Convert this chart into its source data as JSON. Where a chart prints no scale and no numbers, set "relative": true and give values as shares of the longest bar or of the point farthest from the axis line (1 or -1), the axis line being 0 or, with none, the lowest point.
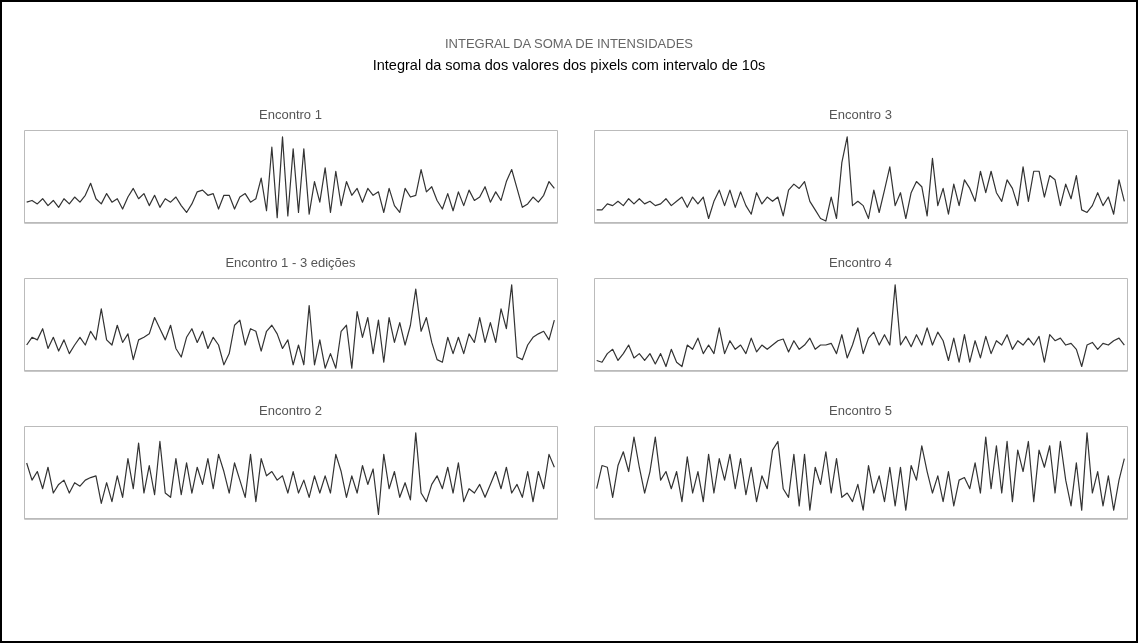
{
  "chart_data": [
    {
      "type": "other",
      "title": "INTEGRAL DA SOMA DE INTENSIDADES",
      "subtitle": "Integral da soma dos valores dos pixels com intervalo de 10s"
    },
    {
      "type": "line",
      "title": "Encontro 1",
      "relative": true,
      "color": "#333333",
      "categories": [
        null,
        null,
        null,
        null,
        null,
        null,
        null,
        null,
        null,
        null,
        null,
        null,
        null,
        null,
        null,
        null,
        null,
        null,
        null,
        null,
        null,
        null,
        null,
        null,
        null,
        null,
        null,
        null,
        null,
        null,
        null,
        null,
        null,
        null,
        null,
        null,
        null,
        null,
        null,
        null,
        null,
        null,
        null,
        null,
        null,
        null,
        null,
        null,
        null,
        null,
        null,
        null,
        null,
        null,
        null,
        null,
        null,
        null,
        null,
        null,
        null,
        null,
        null,
        null,
        null,
        null,
        null,
        null,
        null,
        null,
        null,
        null,
        null,
        null,
        null,
        null,
        null,
        null,
        null,
        null,
        null,
        null,
        null,
        null,
        null,
        null,
        null,
        null,
        null,
        null,
        null,
        null,
        null,
        null,
        null,
        null,
        null,
        null,
        null,
        null
      ],
      "values": [
        0.24,
        0.26,
        0.22,
        0.28,
        0.2,
        0.26,
        0.18,
        0.28,
        0.22,
        0.3,
        0.24,
        0.32,
        0.46,
        0.28,
        0.22,
        0.34,
        0.24,
        0.28,
        0.16,
        0.3,
        0.4,
        0.28,
        0.34,
        0.2,
        0.32,
        0.18,
        0.28,
        0.24,
        0.3,
        0.2,
        0.12,
        0.22,
        0.36,
        0.38,
        0.32,
        0.34,
        0.16,
        0.32,
        0.32,
        0.16,
        0.3,
        0.34,
        0.24,
        0.28,
        0.52,
        0.14,
        0.88,
        0.06,
        1,
        0.08,
        0.86,
        0.12,
        0.86,
        0.1,
        0.48,
        0.24,
        0.64,
        0.12,
        0.6,
        0.2,
        0.48,
        0.32,
        0.4,
        0.24,
        0.4,
        0.32,
        0.36,
        0.12,
        0.4,
        0.2,
        0.12,
        0.4,
        0.3,
        0.32,
        0.62,
        0.36,
        0.42,
        0.26,
        0.16,
        0.34,
        0.14,
        0.36,
        0.2,
        0.38,
        0.26,
        0.3,
        0.42,
        0.24,
        0.36,
        0.26,
        0.48,
        0.62,
        0.4,
        0.18,
        0.22,
        0.3,
        0.24,
        0.32,
        0.48,
        0.4
      ]
    },
    {
      "type": "line",
      "title": "Encontro 3",
      "relative": true,
      "color": "#333333",
      "categories": [
        null,
        null,
        null,
        null,
        null,
        null,
        null,
        null,
        null,
        null,
        null,
        null,
        null,
        null,
        null,
        null,
        null,
        null,
        null,
        null,
        null,
        null,
        null,
        null,
        null,
        null,
        null,
        null,
        null,
        null,
        null,
        null,
        null,
        null,
        null,
        null,
        null,
        null,
        null,
        null,
        null,
        null,
        null,
        null,
        null,
        null,
        null,
        null,
        null,
        null,
        null,
        null,
        null,
        null,
        null,
        null,
        null,
        null,
        null,
        null,
        null,
        null,
        null,
        null,
        null,
        null,
        null,
        null,
        null,
        null,
        null,
        null,
        null,
        null,
        null,
        null,
        null,
        null,
        null,
        null,
        null,
        null,
        null,
        null,
        null,
        null,
        null,
        null,
        null,
        null,
        null,
        null,
        null,
        null,
        null,
        null,
        null,
        null,
        null,
        null
      ],
      "values": [
        0.15,
        0.15,
        0.22,
        0.2,
        0.25,
        0.2,
        0.28,
        0.22,
        0.28,
        0.22,
        0.25,
        0.2,
        0.22,
        0.28,
        0.2,
        0.25,
        0.3,
        0.18,
        0.3,
        0.22,
        0.3,
        0.05,
        0.25,
        0.38,
        0.2,
        0.38,
        0.18,
        0.36,
        0.2,
        0.1,
        0.35,
        0.22,
        0.3,
        0.25,
        0.3,
        0.08,
        0.38,
        0.45,
        0.4,
        0.48,
        0.25,
        0.15,
        0.05,
        0.02,
        0.3,
        0.05,
        0.7,
        1,
        0.2,
        0.25,
        0.2,
        0.05,
        0.38,
        0.12,
        0.38,
        0.65,
        0.2,
        0.35,
        0.05,
        0.35,
        0.48,
        0.42,
        0.08,
        0.75,
        0.2,
        0.4,
        0.1,
        0.45,
        0.2,
        0.5,
        0.4,
        0.25,
        0.6,
        0.35,
        0.6,
        0.35,
        0.25,
        0.5,
        0.4,
        0.2,
        0.65,
        0.25,
        0.6,
        0.6,
        0.3,
        0.55,
        0.5,
        0.2,
        0.45,
        0.28,
        0.55,
        0.15,
        0.12,
        0.2,
        0.35,
        0.2,
        0.3,
        0.1,
        0.5,
        0.25
      ]
    },
    {
      "type": "line",
      "title": "Encontro 1 - 3 edições",
      "relative": true,
      "color": "#333333",
      "categories": [
        null,
        null,
        null,
        null,
        null,
        null,
        null,
        null,
        null,
        null,
        null,
        null,
        null,
        null,
        null,
        null,
        null,
        null,
        null,
        null,
        null,
        null,
        null,
        null,
        null,
        null,
        null,
        null,
        null,
        null,
        null,
        null,
        null,
        null,
        null,
        null,
        null,
        null,
        null,
        null,
        null,
        null,
        null,
        null,
        null,
        null,
        null,
        null,
        null,
        null,
        null,
        null,
        null,
        null,
        null,
        null,
        null,
        null,
        null,
        null,
        null,
        null,
        null,
        null,
        null,
        null,
        null,
        null,
        null,
        null,
        null,
        null,
        null,
        null,
        null,
        null,
        null,
        null,
        null,
        null,
        null,
        null,
        null,
        null,
        null,
        null,
        null,
        null,
        null,
        null,
        null,
        null,
        null,
        null,
        null,
        null,
        null,
        null,
        null,
        null
      ],
      "values": [
        0.3,
        0.39,
        0.36,
        0.49,
        0.26,
        0.39,
        0.23,
        0.36,
        0.2,
        0.3,
        0.39,
        0.3,
        0.46,
        0.36,
        0.72,
        0.36,
        0.3,
        0.53,
        0.33,
        0.43,
        0.13,
        0.36,
        0.39,
        0.43,
        0.62,
        0.49,
        0.36,
        0.53,
        0.26,
        0.16,
        0.39,
        0.49,
        0.33,
        0.46,
        0.26,
        0.39,
        0.3,
        0.07,
        0.2,
        0.53,
        0.59,
        0.3,
        0.49,
        0.46,
        0.23,
        0.46,
        0.53,
        0.43,
        0.26,
        0.36,
        0.07,
        0.3,
        0.07,
        0.76,
        0.07,
        0.36,
        0.03,
        0.2,
        0.03,
        0.46,
        0.53,
        0.03,
        0.69,
        0.39,
        0.62,
        0.2,
        0.59,
        0.1,
        0.62,
        0.33,
        0.56,
        0.3,
        0.53,
        0.95,
        0.46,
        0.62,
        0.33,
        0.13,
        0.1,
        0.39,
        0.2,
        0.39,
        0.2,
        0.43,
        0.33,
        0.62,
        0.33,
        0.56,
        0.33,
        0.72,
        0.49,
        1,
        0.16,
        0.13,
        0.3,
        0.39,
        0.43,
        0.46,
        0.36,
        0.59
      ]
    },
    {
      "type": "line",
      "title": "Encontro 4",
      "relative": true,
      "color": "#333333",
      "categories": [
        null,
        null,
        null,
        null,
        null,
        null,
        null,
        null,
        null,
        null,
        null,
        null,
        null,
        null,
        null,
        null,
        null,
        null,
        null,
        null,
        null,
        null,
        null,
        null,
        null,
        null,
        null,
        null,
        null,
        null,
        null,
        null,
        null,
        null,
        null,
        null,
        null,
        null,
        null,
        null,
        null,
        null,
        null,
        null,
        null,
        null,
        null,
        null,
        null,
        null,
        null,
        null,
        null,
        null,
        null,
        null,
        null,
        null,
        null,
        null,
        null,
        null,
        null,
        null,
        null,
        null,
        null,
        null,
        null,
        null,
        null,
        null,
        null,
        null,
        null,
        null,
        null,
        null,
        null,
        null,
        null,
        null,
        null,
        null,
        null,
        null,
        null,
        null,
        null,
        null,
        null,
        null,
        null,
        null,
        null,
        null,
        null,
        null,
        null,
        null
      ],
      "values": [
        0.12,
        0.1,
        0.2,
        0.25,
        0.12,
        0.2,
        0.3,
        0.15,
        0.2,
        0.12,
        0.2,
        0.08,
        0.2,
        0.05,
        0.25,
        0.1,
        0.05,
        0.3,
        0.25,
        0.38,
        0.2,
        0.3,
        0.2,
        0.5,
        0.2,
        0.35,
        0.25,
        0.3,
        0.2,
        0.38,
        0.22,
        0.3,
        0.25,
        0.3,
        0.35,
        0.37,
        0.22,
        0.35,
        0.25,
        0.3,
        0.38,
        0.25,
        0.3,
        0.3,
        0.32,
        0.2,
        0.42,
        0.15,
        0.3,
        0.5,
        0.2,
        0.38,
        0.45,
        0.3,
        0.42,
        0.3,
        1,
        0.3,
        0.4,
        0.28,
        0.42,
        0.3,
        0.5,
        0.3,
        0.45,
        0.35,
        0.12,
        0.38,
        0.1,
        0.42,
        0.1,
        0.35,
        0.15,
        0.4,
        0.2,
        0.35,
        0.3,
        0.42,
        0.25,
        0.35,
        0.3,
        0.38,
        0.3,
        0.4,
        0.1,
        0.42,
        0.35,
        0.38,
        0.3,
        0.32,
        0.25,
        0.05,
        0.3,
        0.33,
        0.25,
        0.32,
        0.3,
        0.35,
        0.38,
        0.3
      ]
    },
    {
      "type": "line",
      "title": "Encontro 2",
      "relative": true,
      "color": "#333333",
      "categories": [
        null,
        null,
        null,
        null,
        null,
        null,
        null,
        null,
        null,
        null,
        null,
        null,
        null,
        null,
        null,
        null,
        null,
        null,
        null,
        null,
        null,
        null,
        null,
        null,
        null,
        null,
        null,
        null,
        null,
        null,
        null,
        null,
        null,
        null,
        null,
        null,
        null,
        null,
        null,
        null,
        null,
        null,
        null,
        null,
        null,
        null,
        null,
        null,
        null,
        null,
        null,
        null,
        null,
        null,
        null,
        null,
        null,
        null,
        null,
        null,
        null,
        null,
        null,
        null,
        null,
        null,
        null,
        null,
        null,
        null,
        null,
        null,
        null,
        null,
        null,
        null,
        null,
        null,
        null,
        null,
        null,
        null,
        null,
        null,
        null,
        null,
        null,
        null,
        null,
        null,
        null,
        null,
        null,
        null,
        null,
        null,
        null,
        null,
        null,
        null
      ],
      "values": [
        0.65,
        0.45,
        0.55,
        0.35,
        0.6,
        0.3,
        0.4,
        0.45,
        0.3,
        0.42,
        0.38,
        0.45,
        0.48,
        0.5,
        0.18,
        0.42,
        0.2,
        0.5,
        0.25,
        0.7,
        0.35,
        0.88,
        0.3,
        0.62,
        0.28,
        0.9,
        0.3,
        0.25,
        0.7,
        0.28,
        0.65,
        0.3,
        0.6,
        0.4,
        0.7,
        0.35,
        0.75,
        0.55,
        0.3,
        0.65,
        0.45,
        0.25,
        0.75,
        0.2,
        0.7,
        0.5,
        0.55,
        0.45,
        0.5,
        0.3,
        0.55,
        0.3,
        0.45,
        0.25,
        0.5,
        0.3,
        0.5,
        0.3,
        0.75,
        0.55,
        0.25,
        0.5,
        0.3,
        0.62,
        0.4,
        0.58,
        0.05,
        0.75,
        0.35,
        0.55,
        0.25,
        0.42,
        0.22,
        1,
        0.3,
        0.2,
        0.4,
        0.5,
        0.35,
        0.6,
        0.3,
        0.65,
        0.2,
        0.35,
        0.3,
        0.4,
        0.25,
        0.4,
        0.55,
        0.35,
        0.6,
        0.3,
        0.4,
        0.25,
        0.55,
        0.2,
        0.55,
        0.35,
        0.75,
        0.6
      ]
    },
    {
      "type": "line",
      "title": "Encontro 5",
      "relative": true,
      "color": "#333333",
      "categories": [
        null,
        null,
        null,
        null,
        null,
        null,
        null,
        null,
        null,
        null,
        null,
        null,
        null,
        null,
        null,
        null,
        null,
        null,
        null,
        null,
        null,
        null,
        null,
        null,
        null,
        null,
        null,
        null,
        null,
        null,
        null,
        null,
        null,
        null,
        null,
        null,
        null,
        null,
        null,
        null,
        null,
        null,
        null,
        null,
        null,
        null,
        null,
        null,
        null,
        null,
        null,
        null,
        null,
        null,
        null,
        null,
        null,
        null,
        null,
        null,
        null,
        null,
        null,
        null,
        null,
        null,
        null,
        null,
        null,
        null,
        null,
        null,
        null,
        null,
        null,
        null,
        null,
        null,
        null,
        null,
        null,
        null,
        null,
        null,
        null,
        null,
        null,
        null,
        null,
        null,
        null,
        null,
        null,
        null,
        null,
        null,
        null,
        null,
        null,
        null
      ],
      "values": [
        0.35,
        0.62,
        0.6,
        0.25,
        0.62,
        0.78,
        0.55,
        0.95,
        0.6,
        0.3,
        0.55,
        0.95,
        0.45,
        0.55,
        0.35,
        0.55,
        0.2,
        0.72,
        0.3,
        0.55,
        0.2,
        0.75,
        0.3,
        0.7,
        0.45,
        0.75,
        0.35,
        0.7,
        0.28,
        0.6,
        0.2,
        0.5,
        0.35,
        0.8,
        0.9,
        0.35,
        0.25,
        0.75,
        0.15,
        0.75,
        0.1,
        0.6,
        0.4,
        0.78,
        0.3,
        0.7,
        0.25,
        0.3,
        0.2,
        0.4,
        0.1,
        0.62,
        0.3,
        0.5,
        0.2,
        0.6,
        0.15,
        0.6,
        0.1,
        0.62,
        0.45,
        0.85,
        0.55,
        0.3,
        0.5,
        0.2,
        0.55,
        0.15,
        0.45,
        0.48,
        0.35,
        0.65,
        0.3,
        0.95,
        0.35,
        0.85,
        0.3,
        0.9,
        0.2,
        0.8,
        0.55,
        0.9,
        0.2,
        0.8,
        0.6,
        0.85,
        0.3,
        0.9,
        0.45,
        0.15,
        0.65,
        0.1,
        1,
        0.3,
        0.55,
        0.15,
        0.5,
        0.1,
        0.45,
        0.7
      ]
    }
  ]
}
